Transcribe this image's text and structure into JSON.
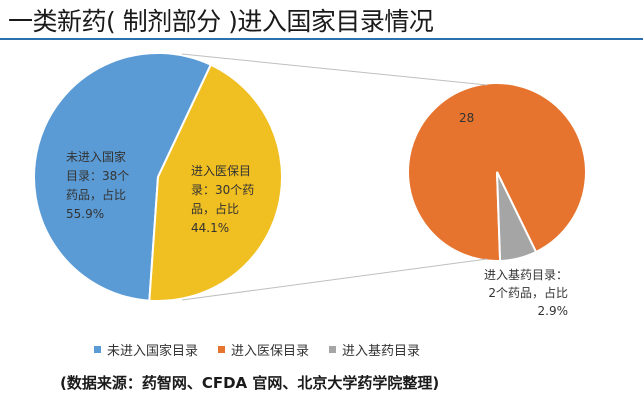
{
  "title": "一类新药( 制剂部分 )进入国家目录情况",
  "source": "(数据来源：药智网、CFDA 官网、北京大学药学院整理)",
  "colors": {
    "blue": "#5b9bd5",
    "yellow": "#f0bf21",
    "orange": "#e6742f",
    "gray": "#a5a5a5",
    "rule": "#2b6fad"
  },
  "chart_data": [
    {
      "type": "pie",
      "slices": [
        {
          "name": "未进入国家目录",
          "value": 38,
          "percent": "55.9%",
          "label": [
            "未进入国家",
            "目录：38个",
            "药品，占比",
            "55.9%"
          ]
        },
        {
          "name": "进入医保目录",
          "value": 30,
          "percent": "44.1%",
          "label": [
            "进入医保目",
            "录：30个药",
            "品，占比",
            "44.1%"
          ]
        }
      ]
    },
    {
      "type": "pie",
      "slices": [
        {
          "name": "进入医保目录",
          "value": 28,
          "label": [
            "28"
          ]
        },
        {
          "name": "进入基药目录",
          "value": 2,
          "percent": "2.9%",
          "label": [
            "进入基药目录：",
            "2个药品，占比",
            "2.9%"
          ]
        }
      ]
    }
  ],
  "legend": [
    {
      "label": "未进入国家目录",
      "color": "#5b9bd5"
    },
    {
      "label": "进入医保目录",
      "color": "#e6742f"
    },
    {
      "label": "进入基药目录",
      "color": "#a5a5a5"
    }
  ]
}
